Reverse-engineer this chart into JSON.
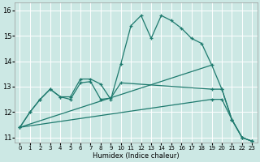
{
  "xlabel": "Humidex (Indice chaleur)",
  "bg_color": "#cce8e4",
  "grid_color": "#ffffff",
  "line_color": "#1e7a6e",
  "xlim": [
    -0.5,
    23.5
  ],
  "ylim": [
    10.8,
    16.3
  ],
  "xticks": [
    0,
    1,
    2,
    3,
    4,
    5,
    6,
    7,
    8,
    9,
    10,
    11,
    12,
    13,
    14,
    15,
    16,
    17,
    18,
    19,
    20,
    21,
    22,
    23
  ],
  "yticks": [
    11,
    12,
    13,
    14,
    15,
    16
  ],
  "curve1_x": [
    0,
    1,
    2,
    3,
    4,
    5,
    6,
    7,
    8,
    9,
    10,
    11,
    12,
    13,
    14,
    15,
    16,
    17,
    18,
    19,
    20,
    21,
    22,
    23
  ],
  "curve1_y": [
    11.4,
    12.0,
    12.5,
    12.9,
    12.6,
    12.6,
    13.3,
    13.3,
    13.1,
    12.5,
    13.9,
    15.4,
    15.8,
    14.9,
    15.8,
    15.6,
    15.3,
    14.9,
    14.7,
    13.85,
    12.9,
    11.7,
    11.0,
    10.85
  ],
  "curve2_x": [
    0,
    1,
    2,
    3,
    4,
    5,
    6,
    7,
    8,
    9,
    10,
    19,
    20,
    21,
    22,
    23
  ],
  "curve2_y": [
    11.4,
    12.0,
    12.5,
    12.9,
    12.6,
    12.5,
    13.15,
    13.2,
    12.5,
    12.55,
    13.15,
    12.9,
    12.9,
    11.7,
    11.0,
    10.85
  ],
  "curve3_x": [
    0,
    19
  ],
  "curve3_y": [
    11.4,
    13.85
  ],
  "curve4_x": [
    0,
    19,
    20,
    21,
    22,
    23
  ],
  "curve4_y": [
    11.4,
    12.5,
    12.5,
    11.7,
    11.0,
    10.85
  ]
}
